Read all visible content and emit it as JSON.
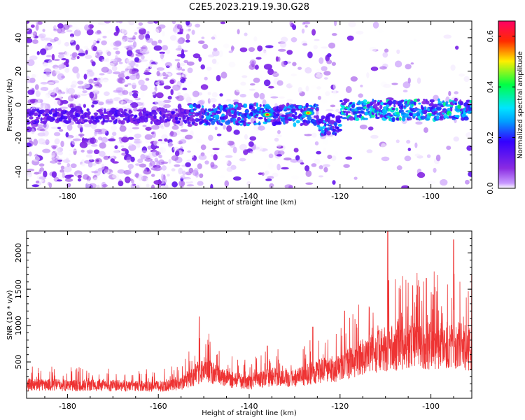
{
  "figure": {
    "title": "C2E5.2023.219.19.30.G28"
  },
  "chart_data": [
    {
      "type": "heatmap",
      "xlabel": "Height of straight line (km)",
      "ylabel": "Frequency (Hz)",
      "xlim": [
        -189,
        -91
      ],
      "ylim": [
        -50,
        50
      ],
      "xticks": [
        -180,
        -160,
        -140,
        -120,
        -100
      ],
      "yticks": [
        -40,
        -20,
        0,
        20,
        40
      ],
      "colorbar": {
        "label": "Normalized spectral amplitude",
        "range": [
          0,
          0.66
        ],
        "ticks": [
          "0.0",
          "0.2",
          "0.4",
          "0.6"
        ],
        "colormap": "rainbow (purple-blue-cyan-green-yellow-red-magenta)",
        "colors": [
          "#8a2be2",
          "#3300ff",
          "#00e5ff",
          "#00ff44",
          "#ffee00",
          "#ff2a00",
          "#ff0066"
        ]
      },
      "features": {
        "signal_band_center_hz_segments": [
          {
            "x": [
              -189,
              -153
            ],
            "freq": -7
          },
          {
            "x": [
              -153,
              -125
            ],
            "freq": -6
          },
          {
            "x": [
              -125,
              -120
            ],
            "freq": -12
          },
          {
            "x": [
              -120,
              -91
            ],
            "freq": -3
          }
        ],
        "peak_amplitudes": [
          {
            "height_km": -136,
            "freq_hz": -6,
            "amplitude": 0.62
          },
          {
            "height_km": -127,
            "freq_hz": -5,
            "amplitude": 0.55
          }
        ],
        "background_noise_extent": {
          "high_density_x": [
            -189,
            -153
          ],
          "sparse_x": [
            -152,
            -126
          ]
        }
      }
    },
    {
      "type": "line",
      "xlabel": "Height of straight line (km)",
      "ylabel": "SNR (10 * v/v)",
      "xlim": [
        -189,
        -91
      ],
      "ylim": [
        0,
        2300
      ],
      "xticks": [
        -180,
        -160,
        -140,
        -120,
        -100
      ],
      "yticks": [
        500,
        1000,
        1500,
        2000
      ],
      "series": [
        {
          "color": "#ee3333",
          "envelope_x": [
            -189,
            -180,
            -170,
            -160,
            -155,
            -150,
            -145,
            -140,
            -135,
            -130,
            -125,
            -120,
            -115,
            -110,
            -105,
            -100,
            -95,
            -91
          ],
          "envelope_typical": [
            230,
            220,
            210,
            200,
            240,
            480,
            330,
            260,
            360,
            330,
            450,
            500,
            700,
            820,
            860,
            880,
            900,
            820
          ],
          "peaks": [
            {
              "x": -151,
              "y": 1120
            },
            {
              "x": -136,
              "y": 720
            },
            {
              "x": -126,
              "y": 980
            },
            {
              "x": -119,
              "y": 1200
            },
            {
              "x": -109.5,
              "y": 2300
            },
            {
              "x": -109.3,
              "y": 1620
            },
            {
              "x": -104,
              "y": 1550
            },
            {
              "x": -101,
              "y": 1650
            },
            {
              "x": -95,
              "y": 2180
            },
            {
              "x": -91,
              "y": 1700
            }
          ]
        }
      ]
    }
  ]
}
